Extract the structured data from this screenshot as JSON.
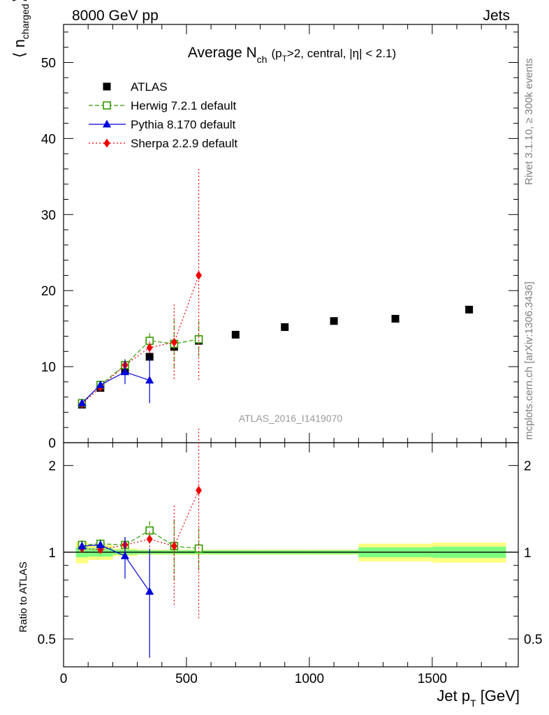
{
  "header": {
    "left": "8000 GeV pp",
    "right": "Jets"
  },
  "side_labels": {
    "rivet": "Rivet 3.1.10, ≥ 300k events",
    "mcplots": "mcplots.cern.ch [arXiv:1306.3436]"
  },
  "watermark": "ATLAS_2016_I1419070",
  "colors": {
    "atlas": "#000000",
    "herwig": "#339900",
    "pythia": "#0000dd",
    "sherpa": "#ee0000",
    "band_inner": "#7fff7f",
    "band_outer": "#ffff80"
  },
  "chart_data": [
    {
      "type": "scatter",
      "title_main": "Average N",
      "title_sub": "ch",
      "title_rest_parts": [
        "(p",
        "T",
        ">2, central, |η| < 2.1)"
      ],
      "ylabel_parts": [
        "⟨ n",
        "charged",
        "⟩"
      ],
      "xlim": [
        0,
        1850
      ],
      "ylim": [
        0,
        55
      ],
      "yticks": [
        0,
        10,
        20,
        30,
        40,
        50
      ],
      "legend_position": "top-left",
      "series": [
        {
          "name": "ATLAS",
          "marker": "filled-square",
          "x": [
            75,
            150,
            250,
            350,
            450,
            550,
            700,
            900,
            1100,
            1350,
            1650
          ],
          "y": [
            5.0,
            7.2,
            9.6,
            11.3,
            12.6,
            13.4,
            14.2,
            15.2,
            16.0,
            16.3,
            17.5
          ]
        },
        {
          "name": "Herwig 7.2.1 default",
          "marker": "open-square",
          "line": "dashed",
          "x": [
            75,
            150,
            250,
            350,
            450,
            550
          ],
          "y": [
            5.2,
            7.6,
            10.2,
            13.4,
            13.0,
            13.6
          ],
          "yerr": [
            0.3,
            0.4,
            0.8,
            1.0,
            3.2,
            2.4
          ]
        },
        {
          "name": "Pythia 8.170 default",
          "marker": "triangle",
          "line": "solid",
          "x": [
            75,
            150,
            250,
            350
          ],
          "y": [
            5.2,
            7.6,
            9.3,
            8.2
          ],
          "yerr": [
            0.3,
            0.4,
            1.6,
            3.0
          ]
        },
        {
          "name": "Sherpa 2.2.9 default",
          "marker": "diamond",
          "line": "dotted",
          "x": [
            75,
            150,
            250,
            350,
            450,
            550
          ],
          "y": [
            5.1,
            7.3,
            10.2,
            12.5,
            13.2,
            22.0
          ],
          "yerr": [
            0.3,
            0.3,
            0.5,
            0.8,
            5.0,
            14.0
          ]
        }
      ]
    },
    {
      "type": "scatter",
      "ylabel": "Ratio to ATLAS",
      "xlabel_parts": [
        "Jet p",
        "T",
        " [GeV]"
      ],
      "xlim": [
        0,
        1850
      ],
      "xticks": [
        0,
        500,
        1000,
        1500
      ],
      "ylim": [
        0.4,
        2.4
      ],
      "ylog": true,
      "yticks": [
        0.5,
        1,
        2
      ],
      "band_edges": [
        50,
        100,
        200,
        300,
        400,
        500,
        600,
        800,
        1000,
        1200,
        1500,
        1800
      ],
      "band_inner": [
        0.04,
        0.035,
        0.02,
        0.015,
        0.015,
        0.015,
        0.015,
        0.015,
        0.015,
        0.04,
        0.045
      ],
      "band_outer": [
        0.085,
        0.06,
        0.03,
        0.02,
        0.02,
        0.02,
        0.02,
        0.02,
        0.02,
        0.07,
        0.08
      ],
      "series": [
        {
          "name": "Herwig 7.2.1 default",
          "x": [
            75,
            150,
            250,
            350,
            450,
            550
          ],
          "y": [
            1.06,
            1.07,
            1.06,
            1.19,
            1.05,
            1.03
          ],
          "yerr": [
            0.04,
            0.04,
            0.07,
            0.09,
            0.25,
            0.18
          ]
        },
        {
          "name": "Pythia 8.170 default",
          "x": [
            75,
            150,
            250,
            350
          ],
          "y": [
            1.05,
            1.06,
            0.97,
            0.73
          ],
          "yerr": [
            0.04,
            0.04,
            0.16,
            0.3
          ]
        },
        {
          "name": "Sherpa 2.2.9 default",
          "x": [
            75,
            150,
            250,
            350,
            450,
            550
          ],
          "y": [
            1.03,
            1.02,
            1.06,
            1.11,
            1.05,
            1.64
          ],
          "yerr": [
            0.04,
            0.03,
            0.05,
            0.07,
            0.4,
            1.05
          ]
        }
      ]
    }
  ]
}
